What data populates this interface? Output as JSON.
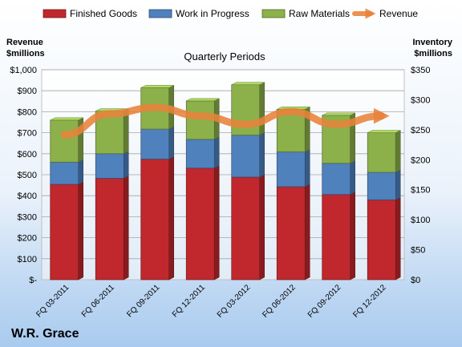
{
  "chart_data": {
    "type": "bar",
    "subtype": "stacked-bar-with-line",
    "title": "Quarterly Periods",
    "company": "W.R. Grace",
    "categories": [
      "FQ 03-2011",
      "FQ 06-2011",
      "FQ 09-2011",
      "FQ 12-2011",
      "FQ 03-2012",
      "FQ 06-2012",
      "FQ 09-2012",
      "FQ 12-2012"
    ],
    "left_axis": {
      "title_line1": "Revenue",
      "title_line2": "$millions",
      "ylim": [
        0,
        1000
      ],
      "ticks": [
        0,
        100,
        200,
        300,
        400,
        500,
        600,
        700,
        800,
        900,
        1000
      ],
      "tick_labels": [
        "$-",
        "$100",
        "$200",
        "$300",
        "$400",
        "$500",
        "$600",
        "$700",
        "$800",
        "$900",
        "$1,000"
      ]
    },
    "right_axis": {
      "title_line1": "Inventory",
      "title_line2": "$millions",
      "ylim": [
        0,
        350
      ],
      "ticks": [
        0,
        50,
        100,
        150,
        200,
        250,
        300,
        350
      ],
      "tick_labels": [
        "$0",
        "$50",
        "$100",
        "$150",
        "$200",
        "$250",
        "$300",
        "$350"
      ]
    },
    "series": [
      {
        "name": "Finished Goods",
        "axis": "right",
        "kind": "bar",
        "color": "#c0282d",
        "values": [
          159,
          169,
          201,
          186,
          171,
          155,
          142,
          133
        ]
      },
      {
        "name": "Work in Progress",
        "axis": "right",
        "kind": "bar",
        "color": "#4f81bd",
        "values": [
          37,
          41,
          50,
          48,
          70,
          58,
          52,
          46
        ]
      },
      {
        "name": "Raw Materials",
        "axis": "right",
        "kind": "bar",
        "color": "#8cb04a",
        "values": [
          70,
          71,
          69,
          64,
          84,
          71,
          80,
          66
        ]
      },
      {
        "name": "Revenue",
        "axis": "left",
        "kind": "line",
        "color": "#e8823a",
        "values": [
          690,
          790,
          820,
          780,
          740,
          800,
          740,
          780
        ]
      }
    ],
    "grid": true,
    "legend_position": "top"
  }
}
